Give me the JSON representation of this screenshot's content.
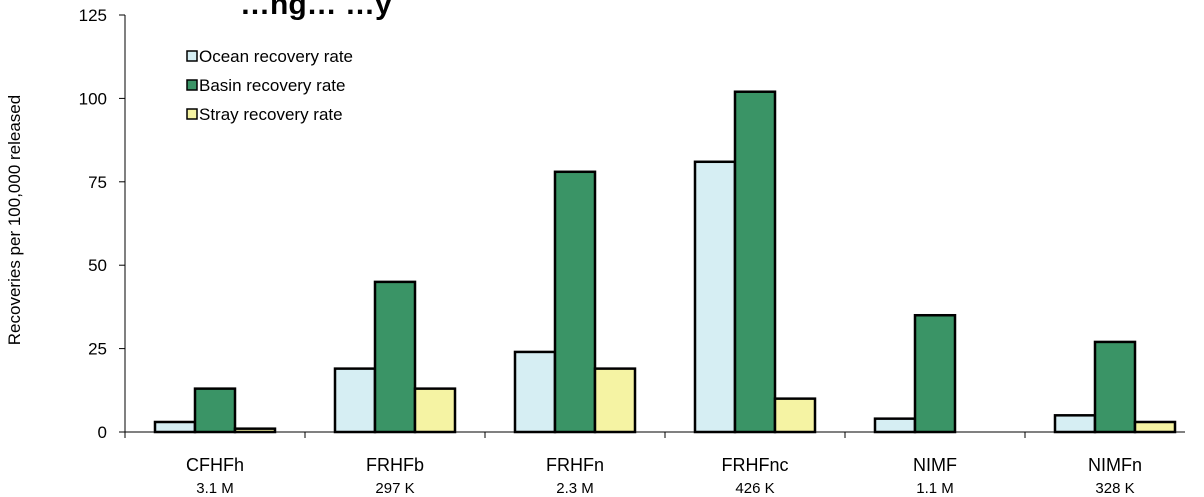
{
  "chart_data": {
    "type": "bar",
    "title": "…ng… …y",
    "ylabel": "Recoveries per 100,000 released",
    "xlabel": "",
    "ylim": [
      0,
      125
    ],
    "yticks": [
      0,
      25,
      50,
      75,
      100,
      125
    ],
    "grid": false,
    "legend_position": "top-left",
    "categories": [
      "CFHFh",
      "FRHFb",
      "FRHFn",
      "FRHFnc",
      "NIMF",
      "NIMFn"
    ],
    "category_sublabels": [
      "3.1 M",
      "297 K",
      "2.3 M",
      "426 K",
      "1.1 M",
      "328 K"
    ],
    "series": [
      {
        "name": "Ocean recovery rate",
        "color": "#d6eef3",
        "values": [
          3,
          19,
          24,
          81,
          4,
          5
        ]
      },
      {
        "name": "Basin recovery rate",
        "color": "#3a9466",
        "values": [
          13,
          45,
          78,
          102,
          35,
          27
        ]
      },
      {
        "name": "Stray recovery rate",
        "color": "#f5f3a3",
        "values": [
          1,
          13,
          19,
          10,
          0,
          3
        ]
      }
    ]
  }
}
